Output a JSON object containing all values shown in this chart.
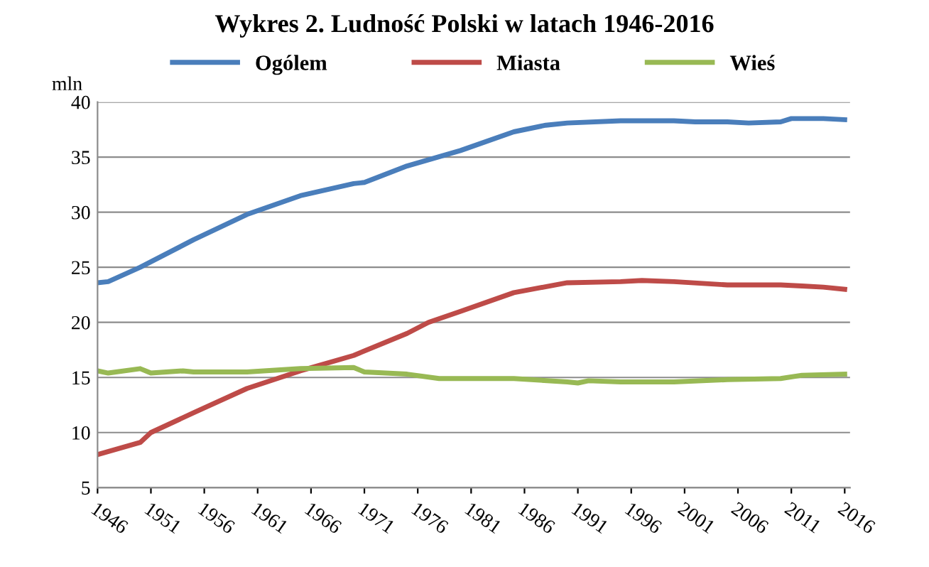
{
  "chart_data": {
    "type": "line",
    "title": "Wykres 2. Ludność Polski w latach 1946-2016",
    "ylabel": "mln",
    "xlim": [
      1946,
      2016.5
    ],
    "xticks": [
      1946,
      1951,
      1956,
      1961,
      1966,
      1971,
      1976,
      1981,
      1986,
      1991,
      1996,
      2001,
      2006,
      2011,
      2016
    ],
    "ylim": [
      5,
      40
    ],
    "yticks": [
      5,
      10,
      15,
      20,
      25,
      30,
      35,
      40
    ],
    "grid": "y",
    "legend": "top",
    "marker": "none",
    "line_style": "solid",
    "series": [
      {
        "name": "Ogólem",
        "color": "#4a7ebb",
        "x": [
          1946,
          1947,
          1950,
          1955,
          1960,
          1965,
          1970,
          1971,
          1975,
          1980,
          1985,
          1988,
          1990,
          1995,
          2000,
          2002,
          2005,
          2007,
          2010,
          2011,
          2014,
          2016
        ],
        "values": [
          23.6,
          23.7,
          25.0,
          27.5,
          29.8,
          31.5,
          32.6,
          32.7,
          34.2,
          35.6,
          37.3,
          37.9,
          38.1,
          38.3,
          38.3,
          38.2,
          38.2,
          38.1,
          38.2,
          38.5,
          38.5,
          38.4
        ]
      },
      {
        "name": "Miasta",
        "color": "#be4b48",
        "x": [
          1946,
          1950,
          1951,
          1955,
          1960,
          1965,
          1970,
          1975,
          1977,
          1980,
          1985,
          1990,
          1995,
          1997,
          2000,
          2005,
          2010,
          2012,
          2014,
          2016
        ],
        "values": [
          8.0,
          9.1,
          10.0,
          11.8,
          14.0,
          15.6,
          17.0,
          19.0,
          20.0,
          21.0,
          22.7,
          23.6,
          23.7,
          23.8,
          23.7,
          23.4,
          23.4,
          23.3,
          23.2,
          23.0
        ]
      },
      {
        "name": "Wieś",
        "color": "#98b954",
        "x": [
          1946,
          1947,
          1950,
          1951,
          1954,
          1955,
          1960,
          1965,
          1970,
          1971,
          1975,
          1978,
          1985,
          1990,
          1991,
          1992,
          1995,
          2000,
          2005,
          2010,
          2012,
          2016
        ],
        "values": [
          15.6,
          15.4,
          15.8,
          15.4,
          15.6,
          15.5,
          15.5,
          15.8,
          15.9,
          15.5,
          15.3,
          14.9,
          14.9,
          14.6,
          14.5,
          14.7,
          14.6,
          14.6,
          14.8,
          14.9,
          15.2,
          15.3
        ]
      }
    ]
  }
}
